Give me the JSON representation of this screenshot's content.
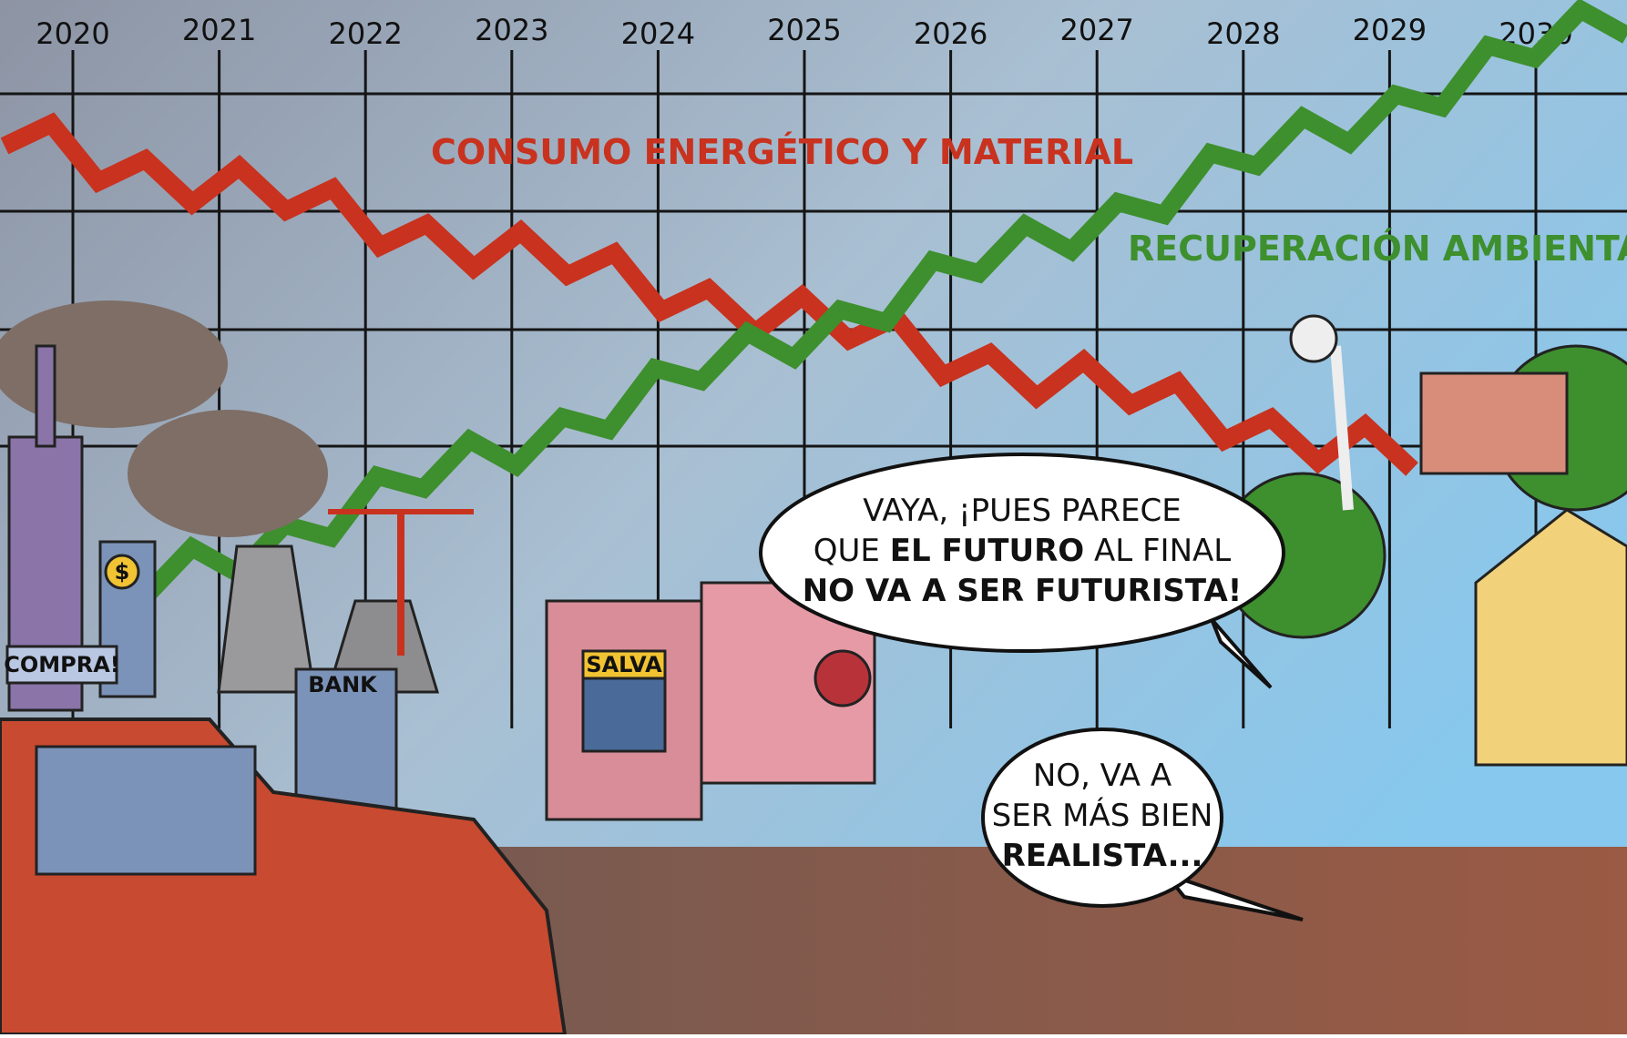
{
  "timeline": {
    "years": [
      "2020",
      "2021",
      "2022",
      "2023",
      "2024",
      "2025",
      "2026",
      "2027",
      "2028",
      "2029",
      "2030"
    ]
  },
  "lines": [
    {
      "label": "CONSUMO ENERGÉTICO Y MATERIAL",
      "color": "#c8321e"
    },
    {
      "label": "RECUPERACIÓN AMBIENTAL",
      "color": "#3e8f2e"
    }
  ],
  "signs": {
    "shop": "COMPRA!",
    "bank": "BANK",
    "money": "$",
    "poster": "SALVA"
  },
  "bubbles": [
    {
      "lines": [
        [
          {
            "text": "VAYA, ¡PUES PARECE",
            "bold": false
          }
        ],
        [
          {
            "text": "QUE ",
            "bold": false
          },
          {
            "text": "EL FUTURO",
            "bold": true
          },
          {
            "text": " AL FINAL",
            "bold": false
          }
        ],
        [
          {
            "text": "NO VA A SER FUTURISTA!",
            "bold": true
          }
        ]
      ]
    },
    {
      "lines": [
        [
          {
            "text": "NO, VA A",
            "bold": false
          }
        ],
        [
          {
            "text": "SER MÁS BIEN",
            "bold": false
          }
        ],
        [
          {
            "text": "REALISTA...",
            "bold": true
          }
        ]
      ]
    }
  ]
}
